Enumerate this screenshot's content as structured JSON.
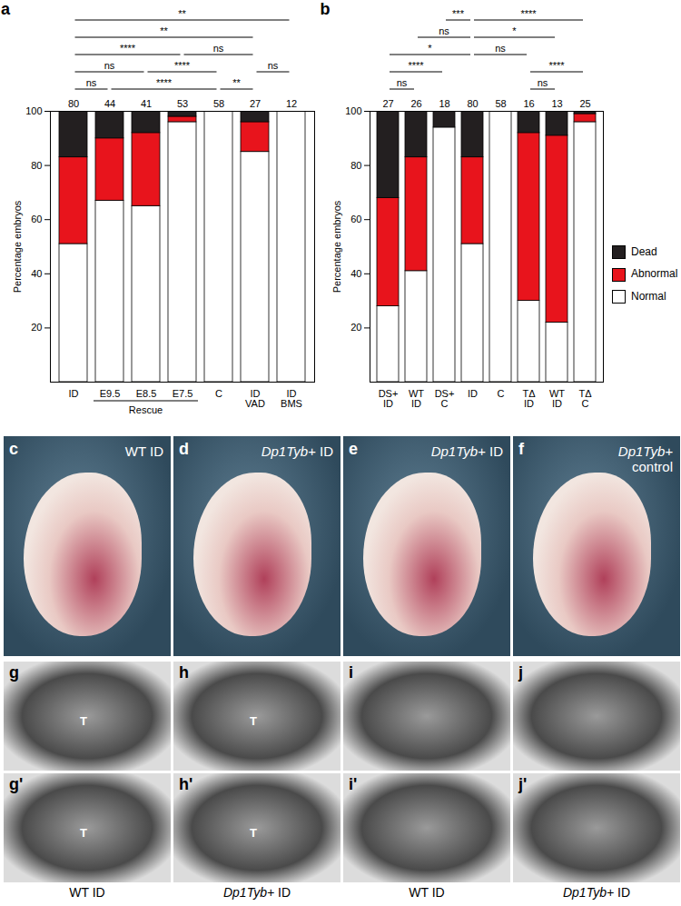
{
  "chart_data": [
    {
      "type": "bar",
      "panel": "a",
      "stacked": true,
      "categories": [
        "ID",
        "E9.5",
        "E8.5",
        "E7.5",
        "C",
        "ID\nVAD",
        "ID\nBMS"
      ],
      "series": [
        {
          "name": "Normal",
          "color": "#ffffff",
          "values": [
            51,
            67,
            65,
            96,
            100,
            85,
            100
          ]
        },
        {
          "name": "Abnormal",
          "color": "#e8141c",
          "values": [
            32,
            23,
            27,
            2,
            0,
            11,
            0
          ]
        },
        {
          "name": "Dead",
          "color": "#231f20",
          "values": [
            17,
            10,
            8,
            2,
            0,
            4,
            0
          ]
        }
      ],
      "counts": [
        80,
        44,
        41,
        53,
        58,
        27,
        12
      ],
      "ylim": [
        0,
        100
      ],
      "yticks": [
        20,
        40,
        60,
        80,
        100
      ],
      "y_label": "Percentage embryos",
      "groups": [
        {
          "label": "Rescue",
          "from": 1,
          "to": 3
        }
      ],
      "comparisons": [
        [
          {
            "from": 0,
            "to": 6,
            "label": "**"
          }
        ],
        [
          {
            "from": 0,
            "to": 5,
            "label": "**"
          }
        ],
        [
          {
            "from": 0,
            "to": 3,
            "label": "****"
          },
          {
            "from": 3,
            "to": 5,
            "label": "ns"
          }
        ],
        [
          {
            "from": 0,
            "to": 2,
            "label": "ns"
          },
          {
            "from": 2,
            "to": 4,
            "label": "****"
          },
          {
            "from": 5,
            "to": 6,
            "label": "ns"
          }
        ],
        [
          {
            "from": 0,
            "to": 1,
            "label": "ns"
          },
          {
            "from": 1,
            "to": 4,
            "label": "****"
          },
          {
            "from": 4,
            "to": 5,
            "label": "**"
          }
        ]
      ]
    },
    {
      "type": "bar",
      "panel": "b",
      "stacked": true,
      "legend": "right",
      "categories": [
        "DS+\nID",
        "WT\nID",
        "DS+\nC",
        "ID",
        "C",
        "TΔ\nID",
        "WT\nID",
        "TΔ\nC"
      ],
      "series": [
        {
          "name": "Normal",
          "color": "#ffffff",
          "values": [
            28,
            41,
            94,
            51,
            100,
            30,
            22,
            96
          ]
        },
        {
          "name": "Abnormal",
          "color": "#e8141c",
          "values": [
            40,
            42,
            0,
            32,
            0,
            62,
            69,
            3
          ]
        },
        {
          "name": "Dead",
          "color": "#231f20",
          "values": [
            32,
            17,
            6,
            17,
            0,
            8,
            9,
            1
          ]
        }
      ],
      "counts": [
        27,
        26,
        18,
        80,
        58,
        16,
        13,
        25
      ],
      "ylim": [
        0,
        100
      ],
      "yticks": [
        20,
        40,
        60,
        80,
        100
      ],
      "y_label": "Percentage embryos",
      "comparisons": [
        [
          {
            "from": 2,
            "to": 3,
            "label": "***"
          },
          {
            "from": 3,
            "to": 7,
            "label": "****"
          }
        ],
        [
          {
            "from": 1,
            "to": 3,
            "label": "ns"
          },
          {
            "from": 3,
            "to": 6,
            "label": "*"
          }
        ],
        [
          {
            "from": 0,
            "to": 3,
            "label": "*"
          },
          {
            "from": 3,
            "to": 5,
            "label": "ns"
          }
        ],
        [
          {
            "from": 0,
            "to": 2,
            "label": "****"
          },
          {
            "from": 5,
            "to": 7,
            "label": "****"
          }
        ],
        [
          {
            "from": 0,
            "to": 1,
            "label": "ns"
          },
          {
            "from": 5,
            "to": 6,
            "label": "ns"
          }
        ]
      ]
    }
  ],
  "photos": [
    {
      "panel": "c",
      "label": "WT ID"
    },
    {
      "panel": "d",
      "label": "Dp1Tyb+ ID"
    },
    {
      "panel": "e",
      "label": "Dp1Tyb+ ID"
    },
    {
      "panel": "f",
      "label": "Dp1Tyb+\ncontrol"
    }
  ],
  "scans": [
    {
      "panel": "g",
      "panel_lower": "g'",
      "upper_marks": [
        "T"
      ],
      "lower_marks": [
        "T"
      ],
      "caption": "WT ID"
    },
    {
      "panel": "h",
      "panel_lower": "h'",
      "upper_marks": [
        "T"
      ],
      "lower_marks": [
        "T"
      ],
      "caption": "Dp1Tyb+ ID"
    },
    {
      "panel": "i",
      "panel_lower": "i'",
      "upper_marks": [],
      "lower_marks": [],
      "caption": "WT ID"
    },
    {
      "panel": "j",
      "panel_lower": "j'",
      "upper_marks": [],
      "lower_marks": [],
      "caption": "Dp1Tyb+ ID"
    }
  ]
}
